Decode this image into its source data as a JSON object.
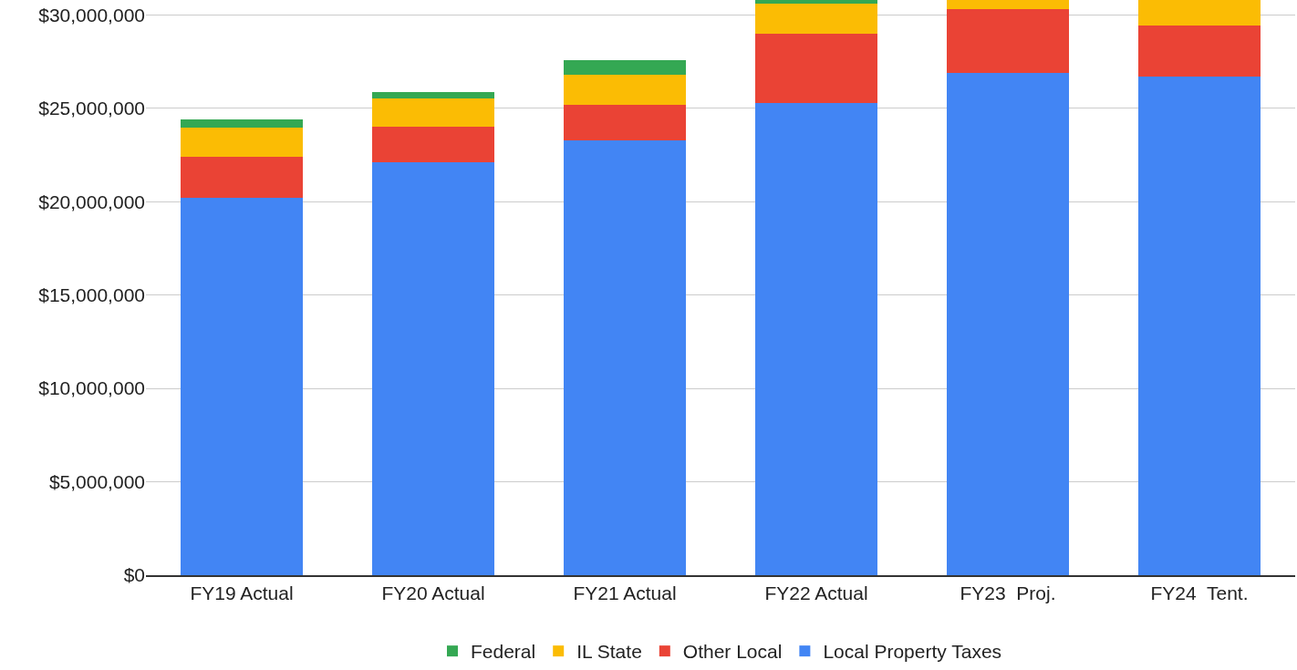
{
  "chart_data": {
    "type": "bar",
    "stacked": true,
    "categories": [
      "FY19 Actual",
      "FY20 Actual",
      "FY21 Actual",
      "FY22 Actual",
      "FY23  Proj.",
      "FY24  Tent."
    ],
    "series": [
      {
        "name": "Local Property Taxes",
        "color": "#4285f4",
        "values": [
          20200000,
          22100000,
          23300000,
          25300000,
          26900000,
          26700000
        ]
      },
      {
        "name": "Other Local",
        "color": "#ea4335",
        "values": [
          2200000,
          1900000,
          1900000,
          3700000,
          3400000,
          2750000
        ]
      },
      {
        "name": "IL State",
        "color": "#fbbc04",
        "values": [
          1550000,
          1550000,
          1600000,
          1600000,
          500000,
          1330000
        ]
      },
      {
        "name": "Federal",
        "color": "#34a853",
        "values": [
          450000,
          300000,
          770000,
          200000,
          null,
          null
        ]
      }
    ],
    "ylim": [
      0,
      30800000
    ],
    "yticks": [
      {
        "value": 0,
        "label": "$0"
      },
      {
        "value": 5000000,
        "label": "$5,000,000"
      },
      {
        "value": 10000000,
        "label": "$10,000,000"
      },
      {
        "value": 15000000,
        "label": "$15,000,000"
      },
      {
        "value": 20000000,
        "label": "$20,000,000"
      },
      {
        "value": 25000000,
        "label": "$25,000,000"
      },
      {
        "value": 30000000,
        "label": "$30,000,000"
      }
    ],
    "grid": "y",
    "legend": "bottom"
  }
}
